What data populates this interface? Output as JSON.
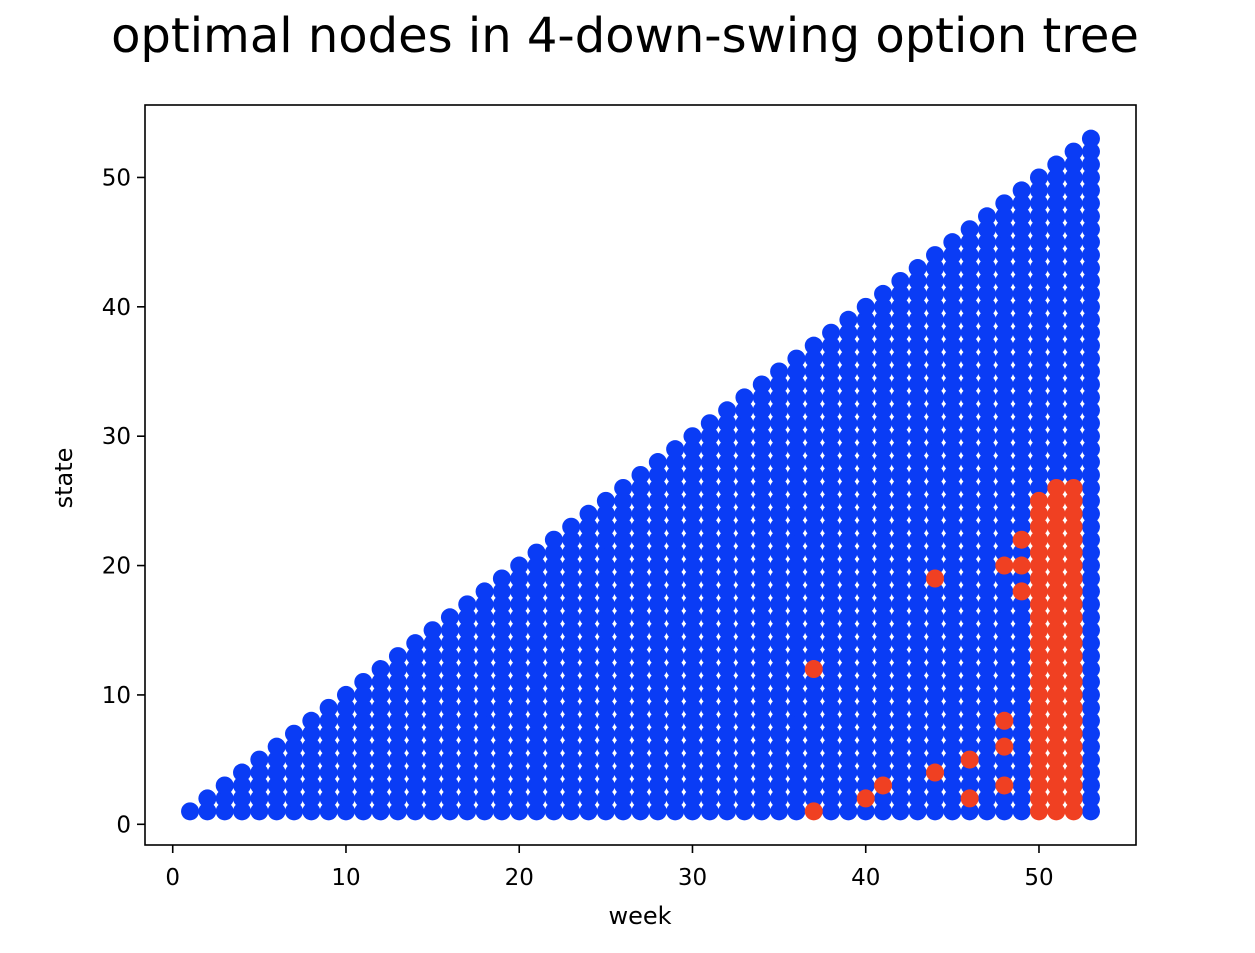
{
  "chart_data": {
    "type": "scatter",
    "title": "optimal nodes in 4-down-swing option tree",
    "xlabel": "week",
    "ylabel": "state",
    "xlim": [
      -1.6,
      55.6
    ],
    "ylim": [
      -1.6,
      55.6
    ],
    "xticks": [
      0,
      10,
      20,
      30,
      40,
      50
    ],
    "yticks": [
      0,
      10,
      20,
      30,
      40,
      50
    ],
    "grid": false,
    "legend": "none",
    "colors": {
      "default": "#0a3cf5",
      "optimal": "#f04022"
    },
    "grid_rule": "for each week w from 1 to 53, points at every state s from 1 to w",
    "weeks": [
      1,
      53
    ],
    "optimal_points": [
      {
        "week": 37,
        "state": 1
      },
      {
        "week": 37,
        "state": 12
      },
      {
        "week": 40,
        "state": 2
      },
      {
        "week": 41,
        "state": 3
      },
      {
        "week": 44,
        "state": 4
      },
      {
        "week": 44,
        "state": 19
      },
      {
        "week": 46,
        "state": 2
      },
      {
        "week": 46,
        "state": 5
      },
      {
        "week": 48,
        "state": 3
      },
      {
        "week": 48,
        "state": 6
      },
      {
        "week": 48,
        "state": 8
      },
      {
        "week": 48,
        "state": 20
      },
      {
        "week": 49,
        "state": 18
      },
      {
        "week": 49,
        "state": 20
      },
      {
        "week": 49,
        "state": 22
      }
    ],
    "optimal_ranges": [
      {
        "week": 50,
        "from": 1,
        "to": 25
      },
      {
        "week": 51,
        "from": 1,
        "to": 26
      },
      {
        "week": 52,
        "from": 1,
        "to": 26
      }
    ]
  }
}
